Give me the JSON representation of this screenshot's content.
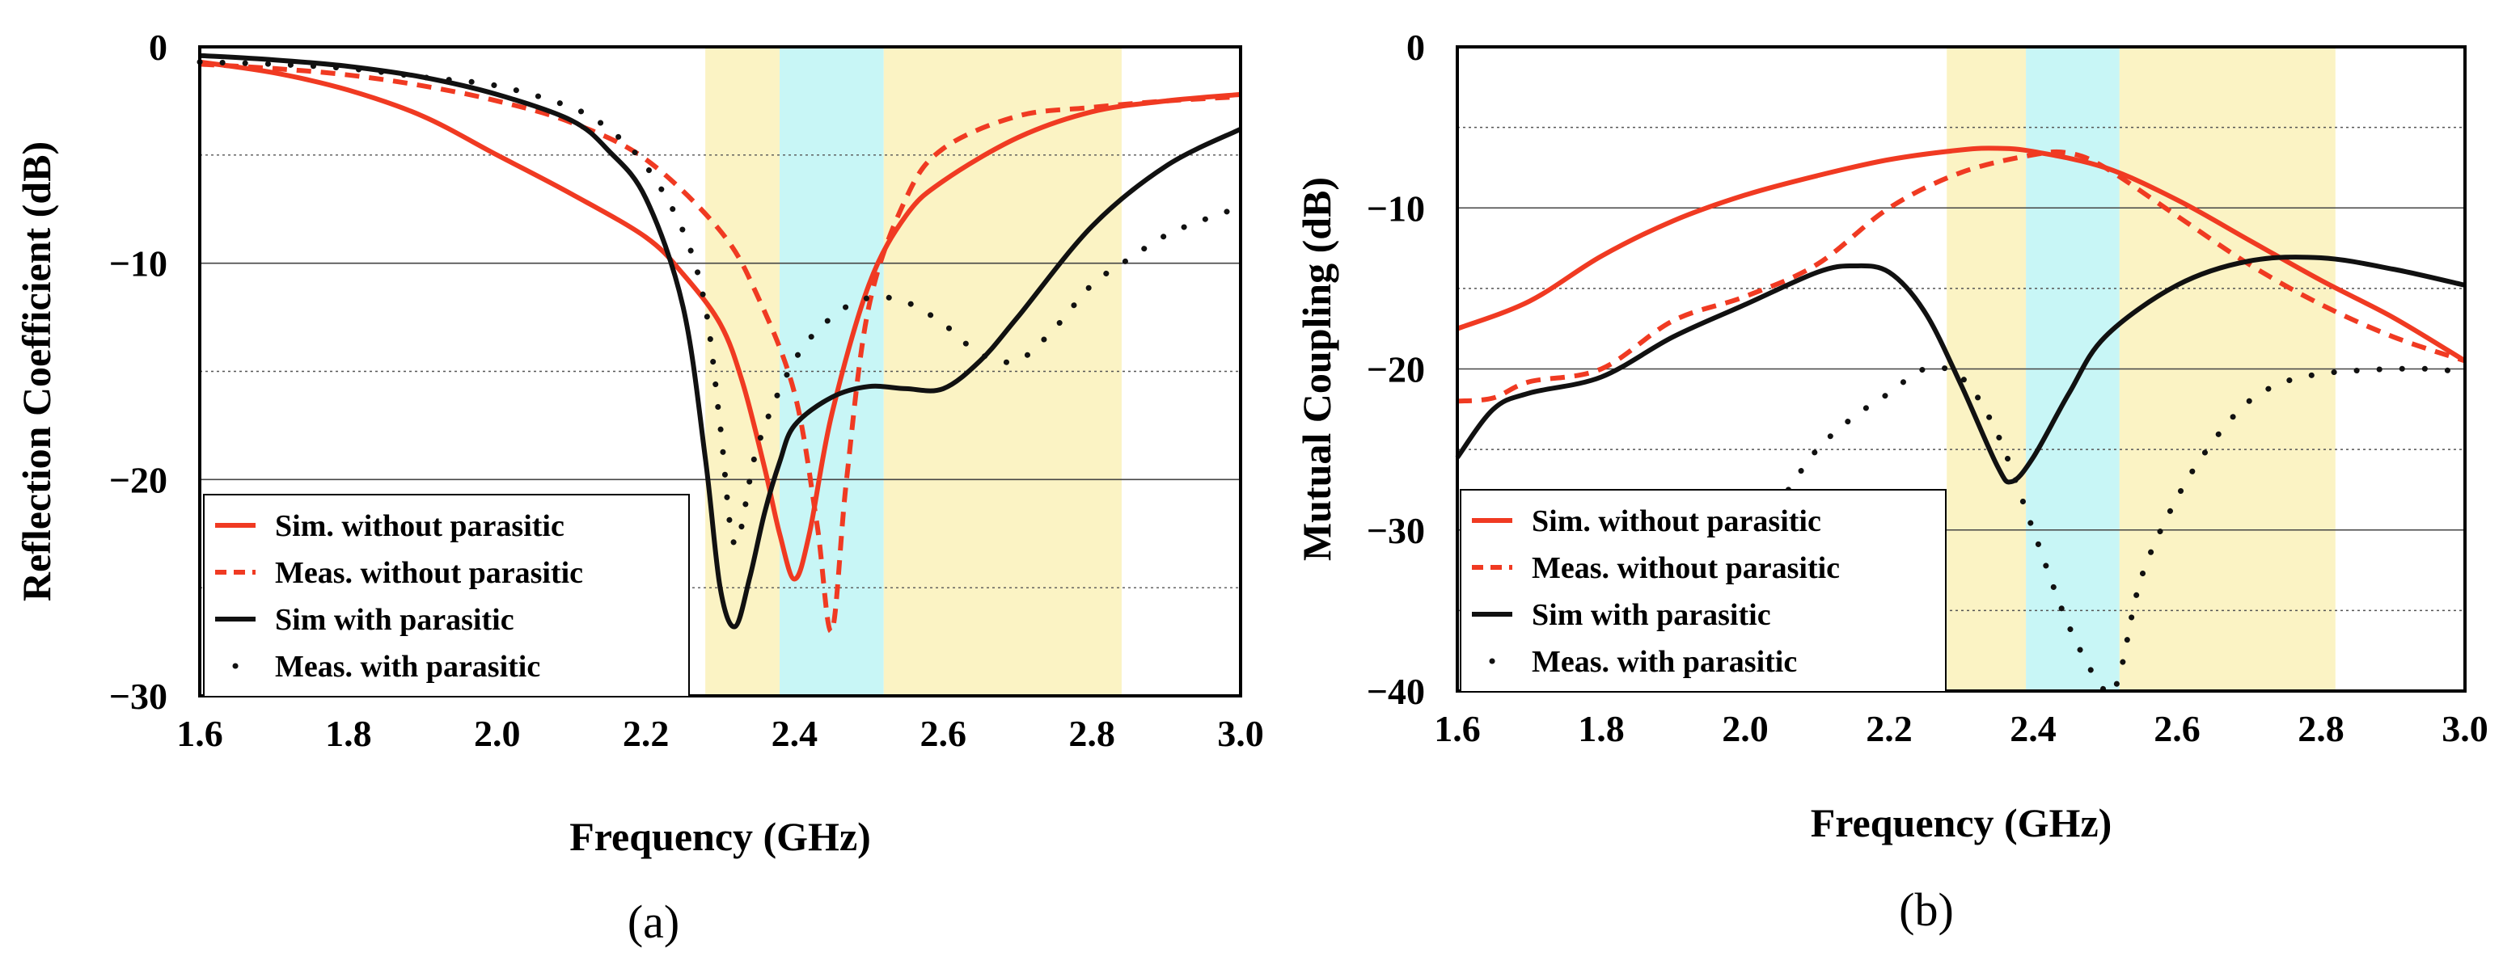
{
  "chart_data": [
    {
      "type": "line",
      "panel_label": "(a)",
      "xlabel": "Frequency (GHz)",
      "ylabel": "Reflection Coefficient  (dB)",
      "xlim": [
        1.6,
        3.0
      ],
      "ylim": [
        -30,
        0
      ],
      "xticks": [
        "1.6",
        "1.8",
        "2.0",
        "2.2",
        "2.4",
        "2.6",
        "2.8",
        "3.0"
      ],
      "yticks": [
        "0",
        "−10",
        "−20",
        "−30"
      ],
      "legend_position": "bottom-left",
      "bands": [
        {
          "from": 2.28,
          "to": 2.38,
          "color": "#fbf3c4"
        },
        {
          "from": 2.38,
          "to": 2.52,
          "color": "#c8f6f6"
        },
        {
          "from": 2.52,
          "to": 2.84,
          "color": "#fbf3c4"
        }
      ],
      "series": [
        {
          "name": "Sim. without parasitic",
          "style": "solid",
          "color": "#f03a22",
          "x": [
            1.6,
            1.7,
            1.8,
            1.9,
            2.0,
            2.1,
            2.2,
            2.25,
            2.3,
            2.33,
            2.36,
            2.38,
            2.4,
            2.42,
            2.45,
            2.5,
            2.55,
            2.6,
            2.7,
            2.8,
            2.9,
            3.0
          ],
          "y": [
            -0.7,
            -1.2,
            -2.0,
            -3.2,
            -5.0,
            -6.8,
            -8.8,
            -10.5,
            -12.8,
            -15.5,
            -19.5,
            -22.5,
            -24.6,
            -22.5,
            -17.0,
            -11.0,
            -7.8,
            -6.2,
            -4.2,
            -3.0,
            -2.5,
            -2.2
          ]
        },
        {
          "name": "Meas. without parasitic",
          "style": "dashed",
          "color": "#f03a22",
          "x": [
            1.6,
            1.7,
            1.8,
            1.9,
            2.0,
            2.1,
            2.2,
            2.3,
            2.35,
            2.4,
            2.43,
            2.45,
            2.47,
            2.5,
            2.55,
            2.6,
            2.7,
            2.8,
            2.9,
            3.0
          ],
          "y": [
            -0.8,
            -1.0,
            -1.3,
            -1.8,
            -2.5,
            -3.5,
            -5.2,
            -8.5,
            -11.5,
            -16.0,
            -22.0,
            -27.0,
            -20.0,
            -12.0,
            -7.0,
            -4.7,
            -3.2,
            -2.8,
            -2.5,
            -2.3
          ]
        },
        {
          "name": "Sim with parasitic",
          "style": "solid",
          "color": "#111111",
          "x": [
            1.6,
            1.7,
            1.8,
            1.9,
            2.0,
            2.1,
            2.15,
            2.2,
            2.25,
            2.28,
            2.3,
            2.32,
            2.34,
            2.36,
            2.38,
            2.4,
            2.45,
            2.5,
            2.55,
            2.6,
            2.65,
            2.7,
            2.8,
            2.9,
            3.0
          ],
          "y": [
            -0.4,
            -0.6,
            -0.9,
            -1.4,
            -2.2,
            -3.4,
            -4.8,
            -7.0,
            -12.0,
            -19.0,
            -25.0,
            -26.8,
            -24.5,
            -21.5,
            -19.2,
            -17.5,
            -16.2,
            -15.7,
            -15.8,
            -15.8,
            -14.5,
            -12.5,
            -8.3,
            -5.5,
            -3.8
          ]
        },
        {
          "name": "Meas. with parasitic",
          "style": "dotted",
          "color": "#111111",
          "x": [
            1.6,
            1.7,
            1.8,
            1.9,
            2.0,
            2.1,
            2.15,
            2.2,
            2.25,
            2.28,
            2.3,
            2.32,
            2.35,
            2.4,
            2.45,
            2.5,
            2.55,
            2.6,
            2.65,
            2.7,
            2.75,
            2.8,
            2.85,
            2.9,
            2.95,
            3.0
          ],
          "y": [
            -0.7,
            -0.8,
            -1.0,
            -1.4,
            -1.8,
            -2.8,
            -3.8,
            -5.5,
            -8.5,
            -12.0,
            -17.5,
            -23.0,
            -18.5,
            -14.5,
            -12.5,
            -11.6,
            -11.8,
            -12.8,
            -14.2,
            -14.5,
            -13.0,
            -11.0,
            -9.8,
            -8.7,
            -8.0,
            -7.4
          ]
        }
      ]
    },
    {
      "type": "line",
      "panel_label": "(b)",
      "xlabel": "Frequency (GHz)",
      "ylabel": "Mutual Coupling  (dB)",
      "xlim": [
        1.6,
        3.0
      ],
      "ylim": [
        -40,
        0
      ],
      "xticks": [
        "1.6",
        "1.8",
        "2.0",
        "2.2",
        "2.4",
        "2.6",
        "2.8",
        "3.0"
      ],
      "yticks": [
        "0",
        "−10",
        "−20",
        "−30",
        "−40"
      ],
      "legend_position": "bottom-left",
      "bands": [
        {
          "from": 2.28,
          "to": 2.39,
          "color": "#fbf3c4"
        },
        {
          "from": 2.39,
          "to": 2.52,
          "color": "#c8f6f6"
        },
        {
          "from": 2.52,
          "to": 2.82,
          "color": "#fbf3c4"
        }
      ],
      "series": [
        {
          "name": "Sim. without parasitic",
          "style": "solid",
          "color": "#f03a22",
          "x": [
            1.6,
            1.7,
            1.8,
            1.9,
            2.0,
            2.1,
            2.2,
            2.3,
            2.35,
            2.4,
            2.5,
            2.6,
            2.7,
            2.8,
            2.9,
            3.0
          ],
          "y": [
            -17.5,
            -15.8,
            -13.0,
            -10.8,
            -9.2,
            -8.0,
            -7.0,
            -6.4,
            -6.3,
            -6.5,
            -7.5,
            -9.5,
            -12.0,
            -14.5,
            -16.8,
            -19.5
          ]
        },
        {
          "name": "Meas. without parasitic",
          "style": "dashed",
          "color": "#f03a22",
          "x": [
            1.6,
            1.65,
            1.7,
            1.8,
            1.9,
            2.0,
            2.1,
            2.2,
            2.3,
            2.4,
            2.45,
            2.5,
            2.6,
            2.7,
            2.8,
            2.9,
            3.0
          ],
          "y": [
            -22.0,
            -21.8,
            -20.8,
            -20.0,
            -17.0,
            -15.5,
            -13.5,
            -10.0,
            -7.8,
            -6.7,
            -6.6,
            -7.5,
            -10.5,
            -13.5,
            -16.0,
            -18.0,
            -19.5
          ]
        },
        {
          "name": "Sim with parasitic",
          "style": "solid",
          "color": "#111111",
          "x": [
            1.6,
            1.65,
            1.7,
            1.8,
            1.9,
            2.0,
            2.1,
            2.15,
            2.2,
            2.25,
            2.3,
            2.35,
            2.37,
            2.4,
            2.45,
            2.5,
            2.6,
            2.7,
            2.8,
            2.9,
            3.0
          ],
          "y": [
            -25.5,
            -22.5,
            -21.5,
            -20.5,
            -18.0,
            -16.0,
            -14.0,
            -13.6,
            -14.0,
            -16.5,
            -21.0,
            -26.0,
            -27.0,
            -25.5,
            -21.5,
            -18.0,
            -14.8,
            -13.3,
            -13.1,
            -13.8,
            -14.8
          ]
        },
        {
          "name": "Meas. with parasitic",
          "style": "dotted",
          "color": "#111111",
          "x": [
            2.06,
            2.1,
            2.15,
            2.2,
            2.25,
            2.3,
            2.35,
            2.4,
            2.45,
            2.5,
            2.52,
            2.55,
            2.6,
            2.65,
            2.7,
            2.75,
            2.8,
            2.85,
            2.9,
            2.95,
            3.0
          ],
          "y": [
            -27.5,
            -25.0,
            -23.0,
            -21.5,
            -20.0,
            -20.5,
            -24.0,
            -30.0,
            -36.0,
            -40.0,
            -39.0,
            -33.0,
            -28.0,
            -24.5,
            -22.0,
            -20.8,
            -20.3,
            -20.1,
            -20.0,
            -20.0,
            -20.2
          ]
        }
      ]
    }
  ]
}
